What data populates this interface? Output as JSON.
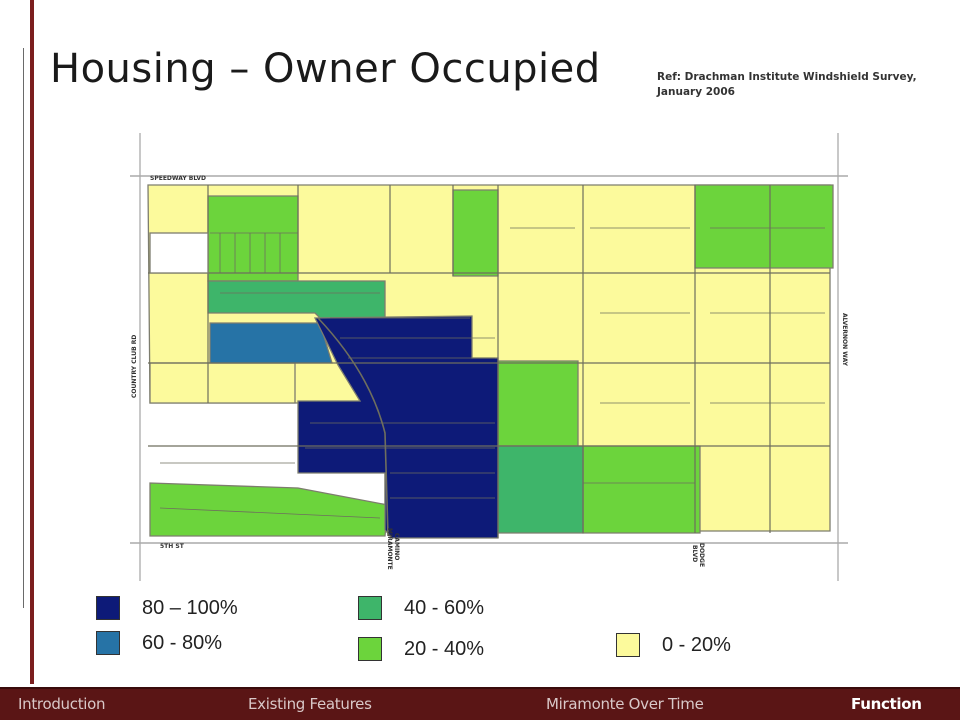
{
  "slide": {
    "title": "Housing – Owner Occupied",
    "reference": "Ref: Drachman Institute Windshield Survey, January 2006"
  },
  "map": {
    "street_labels": {
      "speedway": "SPEEDWAY BLVD",
      "country_club": "COUNTRY CLUB RD",
      "alvernon": "ALVERNON WAY",
      "fifth": "5TH ST",
      "camino_line1": "CAMINO",
      "camino_line2": "MIRAMONTE",
      "dodge_line1": "DODGE",
      "dodge_line2": "BLVD"
    },
    "colors": {
      "c80_100": "#0d1a78",
      "c60_80": "#2673a6",
      "c40_60": "#3eb56a",
      "c20_40": "#6cd43c",
      "c0_20": "#fcfa9c"
    }
  },
  "legend": [
    {
      "label": "80 – 100%",
      "color": "#0d1a78"
    },
    {
      "label": "40 - 60%",
      "color": "#3eb56a"
    },
    {
      "label": "60 - 80%",
      "color": "#2673a6"
    },
    {
      "label": "20 - 40%",
      "color": "#6cd43c"
    },
    {
      "label": "0 - 20%",
      "color": "#fcfa9c"
    }
  ],
  "nav": {
    "introduction": "Introduction",
    "existing_features": "Existing Features",
    "miramonte_over_time": "Miramonte Over Time",
    "function": "Function"
  }
}
